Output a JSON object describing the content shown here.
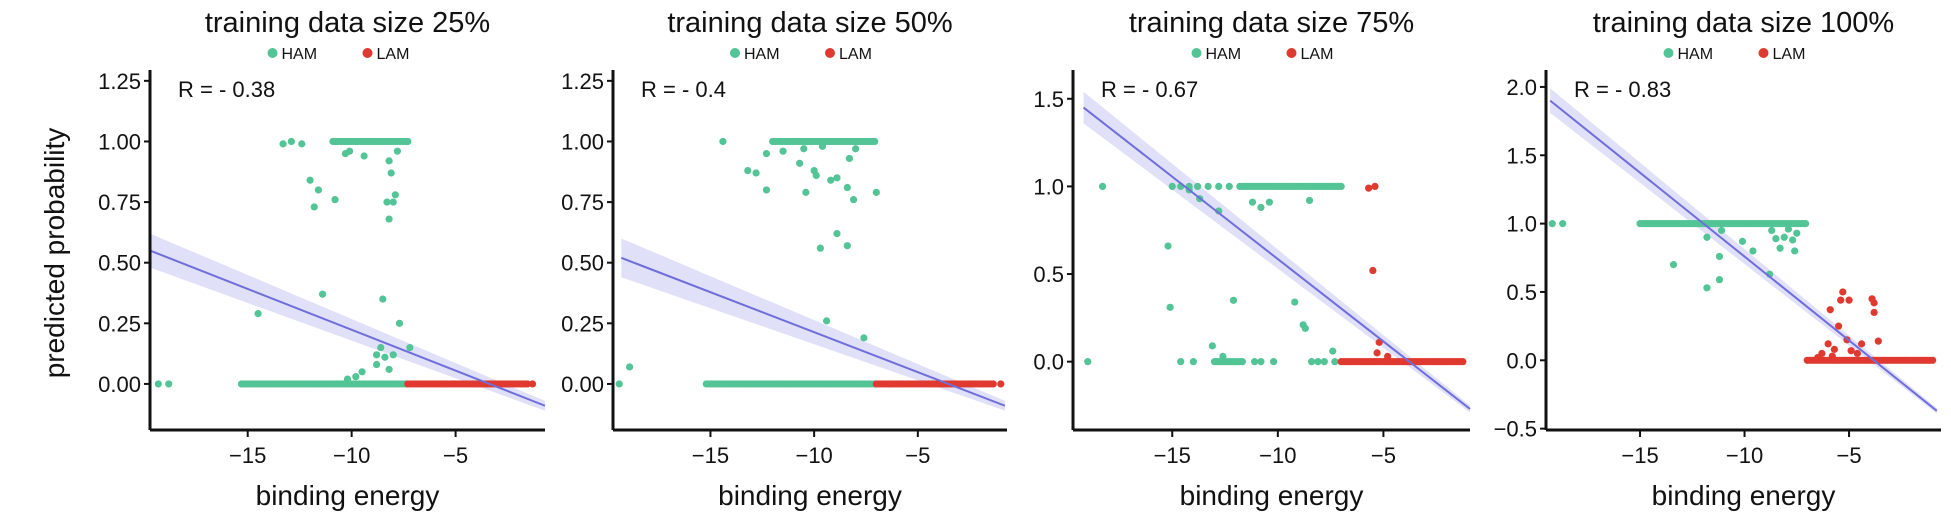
{
  "colors": {
    "HAM": "#52c495",
    "LAM": "#e0392f",
    "fit_line": "#6f6ddc",
    "fit_band": "#d8d8f6",
    "axis": "#111111"
  },
  "chart_data": [
    {
      "type": "scatter",
      "title": "training data size 25%",
      "xlabel": "binding energy",
      "ylabel": "predicted probability",
      "legend": {
        "placement": "top",
        "entries": [
          "HAM",
          "LAM"
        ]
      },
      "annotation": "R = - 0.38",
      "xlim": [
        -19.7,
        -0.7
      ],
      "ylim": [
        -0.19,
        1.27
      ],
      "xticks": [
        -15,
        -10,
        -5
      ],
      "xtick_labels": [
        "−15",
        "−10",
        "−5"
      ],
      "yticks": [
        0,
        0.25,
        0.5,
        0.75,
        1.0,
        1.25
      ],
      "ytick_labels": [
        "0.00",
        "0.25",
        "0.50",
        "0.75",
        "1.00",
        "1.25"
      ],
      "grid": false,
      "series": [
        {
          "name": "HAM",
          "bands": [
            {
              "y": 0,
              "x": [
                -15.3,
                -7.3
              ]
            },
            {
              "y": 1,
              "x": [
                -10.9,
                -7.3
              ]
            }
          ],
          "points": [
            [
              -19.3,
              0
            ],
            [
              -18.8,
              0
            ],
            [
              -13.3,
              0.99
            ],
            [
              -12.9,
              1.0
            ],
            [
              -12.4,
              0.99
            ],
            [
              -12.0,
              0.84
            ],
            [
              -11.6,
              0.8
            ],
            [
              -11.8,
              0.73
            ],
            [
              -10.8,
              0.76
            ],
            [
              -8.3,
              0.75
            ],
            [
              -8.0,
              0.75
            ],
            [
              -8.2,
              0.68
            ],
            [
              -7.9,
              0.78
            ],
            [
              -8.1,
              0.87
            ],
            [
              -8.2,
              0.92
            ],
            [
              -10.3,
              0.95
            ],
            [
              -9.4,
              0.94
            ],
            [
              -10.1,
              0.96
            ],
            [
              -7.8,
              0.96
            ],
            [
              -11.4,
              0.37
            ],
            [
              -8.5,
              0.35
            ],
            [
              -14.5,
              0.29
            ],
            [
              -7.7,
              0.25
            ],
            [
              -7.2,
              0.15
            ],
            [
              -8.8,
              0.12
            ],
            [
              -8.6,
              0.15
            ],
            [
              -8.8,
              0.08
            ],
            [
              -8.4,
              0.11
            ],
            [
              -8.0,
              0.12
            ],
            [
              -8.2,
              0.06
            ],
            [
              -9.5,
              0.05
            ],
            [
              -9.8,
              0.03
            ],
            [
              -10.2,
              0.02
            ]
          ]
        },
        {
          "name": "LAM",
          "bands": [
            {
              "y": 0,
              "x": [
                -7.3,
                -1.5
              ]
            }
          ],
          "points": [
            [
              -1.3,
              0
            ]
          ]
        }
      ],
      "fit": {
        "x": [
          -19.7,
          -0.7
        ],
        "y": [
          0.55,
          -0.09
        ],
        "band_halfwidth": [
          0.07,
          0.02
        ]
      }
    },
    {
      "type": "scatter",
      "title": "training data size 50%",
      "xlabel": "binding energy",
      "ylabel": "",
      "legend": {
        "placement": "top",
        "entries": [
          "HAM",
          "LAM"
        ]
      },
      "annotation": "R = - 0.4",
      "xlim": [
        -19.7,
        -0.7
      ],
      "ylim": [
        -0.19,
        1.27
      ],
      "xticks": [
        -15,
        -10,
        -5
      ],
      "xtick_labels": [
        "−15",
        "−10",
        "−5"
      ],
      "yticks": [
        0,
        0.25,
        0.5,
        0.75,
        1.0,
        1.25
      ],
      "ytick_labels": [
        "0.00",
        "0.25",
        "0.50",
        "0.75",
        "1.00",
        "1.25"
      ],
      "grid": false,
      "series": [
        {
          "name": "HAM",
          "bands": [
            {
              "y": 0,
              "x": [
                -15.2,
                -7.0
              ]
            },
            {
              "y": 1,
              "x": [
                -12.0,
                -7.0
              ]
            }
          ],
          "points": [
            [
              -19.4,
              0
            ],
            [
              -18.9,
              0.07
            ],
            [
              -14.4,
              1.0
            ],
            [
              -12.3,
              0.95
            ],
            [
              -11.5,
              0.96
            ],
            [
              -13.2,
              0.88
            ],
            [
              -12.8,
              0.87
            ],
            [
              -12.3,
              0.8
            ],
            [
              -10.7,
              0.91
            ],
            [
              -10.0,
              0.88
            ],
            [
              -9.9,
              0.86
            ],
            [
              -10.4,
              0.79
            ],
            [
              -9.2,
              0.84
            ],
            [
              -8.9,
              0.85
            ],
            [
              -8.4,
              0.81
            ],
            [
              -8.3,
              0.93
            ],
            [
              -8.1,
              0.76
            ],
            [
              -7.0,
              0.79
            ],
            [
              -8.9,
              0.62
            ],
            [
              -9.7,
              0.56
            ],
            [
              -8.4,
              0.57
            ],
            [
              -9.4,
              0.26
            ],
            [
              -7.6,
              0.19
            ],
            [
              -10.5,
              0.97
            ],
            [
              -9.6,
              0.98
            ],
            [
              -8.0,
              0.97
            ]
          ]
        },
        {
          "name": "LAM",
          "bands": [
            {
              "y": 0,
              "x": [
                -7.0,
                -1.3
              ]
            }
          ],
          "points": [
            [
              -1.0,
              0
            ]
          ]
        }
      ],
      "fit": {
        "x": [
          -19.3,
          -0.8
        ],
        "y": [
          0.52,
          -0.09
        ],
        "band_halfwidth": [
          0.08,
          0.02
        ]
      }
    },
    {
      "type": "scatter",
      "title": "training data size 75%",
      "xlabel": "binding energy",
      "ylabel": "",
      "legend": {
        "placement": "top",
        "entries": [
          "HAM",
          "LAM"
        ]
      },
      "annotation": "R = - 0.67",
      "xlim": [
        -19.7,
        -0.9
      ],
      "ylim": [
        -0.39,
        1.63
      ],
      "xticks": [
        -15,
        -10,
        -5
      ],
      "xtick_labels": [
        "−15",
        "−10",
        "−5"
      ],
      "yticks": [
        0,
        0.5,
        1.0,
        1.5
      ],
      "ytick_labels": [
        "0.0",
        "0.5",
        "1.0",
        "1.5"
      ],
      "grid": false,
      "series": [
        {
          "name": "HAM",
          "bands": [
            {
              "y": 1,
              "x": [
                -11.8,
                -7.0
              ]
            },
            {
              "y": 0,
              "x": [
                -13.0,
                -11.6
              ]
            }
          ],
          "points": [
            [
              -18.3,
              1.0
            ],
            [
              -15.0,
              1.0
            ],
            [
              -14.6,
              1.0
            ],
            [
              -14.2,
              1.0
            ],
            [
              -13.8,
              1.0
            ],
            [
              -13.3,
              1.0
            ],
            [
              -12.8,
              1.0
            ],
            [
              -12.3,
              1.0
            ],
            [
              -14.2,
              0.98
            ],
            [
              -13.7,
              0.93
            ],
            [
              -12.8,
              0.86
            ],
            [
              -11.2,
              0.91
            ],
            [
              -10.8,
              0.88
            ],
            [
              -10.4,
              0.91
            ],
            [
              -8.5,
              0.92
            ],
            [
              -15.2,
              0.66
            ],
            [
              -15.1,
              0.31
            ],
            [
              -12.1,
              0.35
            ],
            [
              -9.2,
              0.34
            ],
            [
              -8.8,
              0.21
            ],
            [
              -8.7,
              0.19
            ],
            [
              -13.1,
              0.09
            ],
            [
              -7.4,
              0.06
            ],
            [
              -19.0,
              0
            ],
            [
              -14.6,
              0
            ],
            [
              -14.0,
              0
            ],
            [
              -11.1,
              0
            ],
            [
              -10.8,
              0
            ],
            [
              -10.2,
              0
            ],
            [
              -8.4,
              0
            ],
            [
              -8.1,
              0
            ],
            [
              -7.8,
              0
            ],
            [
              -7.3,
              0
            ],
            [
              -12.6,
              0.03
            ]
          ]
        },
        {
          "name": "LAM",
          "bands": [
            {
              "y": 0,
              "x": [
                -7.0,
                -1.2
              ]
            }
          ],
          "points": [
            [
              -5.7,
              0.99
            ],
            [
              -5.4,
              1.0
            ],
            [
              -5.5,
              0.52
            ],
            [
              -5.2,
              0.11
            ],
            [
              -5.3,
              0.05
            ],
            [
              -4.8,
              0.03
            ]
          ]
        }
      ],
      "fit": {
        "x": [
          -19.2,
          -0.9
        ],
        "y": [
          1.45,
          -0.27
        ],
        "band_halfwidth": [
          0.09,
          0.02
        ]
      }
    },
    {
      "type": "scatter",
      "title": "training data size 100%",
      "xlabel": "binding energy",
      "ylabel": "",
      "legend": {
        "placement": "top",
        "entries": [
          "HAM",
          "LAM"
        ]
      },
      "annotation": "R = - 0.83",
      "xlim": [
        -19.5,
        -0.6
      ],
      "ylim": [
        -0.51,
        2.08
      ],
      "xticks": [
        -15,
        -10,
        -5
      ],
      "xtick_labels": [
        "−15",
        "−10",
        "−5"
      ],
      "yticks": [
        -0.5,
        0,
        0.5,
        1.0,
        1.5,
        2.0
      ],
      "ytick_labels": [
        "−0.5",
        "0.0",
        "0.5",
        "1.0",
        "1.5",
        "2.0"
      ],
      "grid": false,
      "series": [
        {
          "name": "HAM",
          "bands": [
            {
              "y": 1,
              "x": [
                -15.0,
                -7.0
              ]
            }
          ],
          "points": [
            [
              -19.2,
              1.0
            ],
            [
              -18.7,
              1.0
            ],
            [
              -11.8,
              0.9
            ],
            [
              -11.1,
              0.95
            ],
            [
              -10.1,
              0.87
            ],
            [
              -8.5,
              0.89
            ],
            [
              -8.1,
              0.9
            ],
            [
              -7.5,
              0.93
            ],
            [
              -7.7,
              0.88
            ],
            [
              -8.3,
              0.82
            ],
            [
              -7.6,
              0.8
            ],
            [
              -9.6,
              0.8
            ],
            [
              -11.2,
              0.76
            ],
            [
              -13.4,
              0.7
            ],
            [
              -8.8,
              0.63
            ],
            [
              -11.2,
              0.59
            ],
            [
              -11.8,
              0.53
            ],
            [
              -7.9,
              0.96
            ],
            [
              -8.7,
              0.95
            ]
          ]
        },
        {
          "name": "LAM",
          "bands": [
            {
              "y": 0,
              "x": [
                -7.0,
                -1.0
              ]
            }
          ],
          "points": [
            [
              -5.3,
              0.5
            ],
            [
              -5.4,
              0.44
            ],
            [
              -5.0,
              0.44
            ],
            [
              -3.9,
              0.45
            ],
            [
              -3.8,
              0.42
            ],
            [
              -3.8,
              0.35
            ],
            [
              -5.9,
              0.37
            ],
            [
              -5.5,
              0.25
            ],
            [
              -5.1,
              0.15
            ],
            [
              -3.6,
              0.14
            ],
            [
              -4.4,
              0.12
            ],
            [
              -6.0,
              0.12
            ],
            [
              -5.7,
              0.08
            ],
            [
              -6.3,
              0.05
            ],
            [
              -4.6,
              0.05
            ],
            [
              -5.8,
              0.03
            ],
            [
              -4.9,
              0.07
            ],
            [
              -6.5,
              0.02
            ]
          ]
        }
      ],
      "fit": {
        "x": [
          -19.3,
          -0.8
        ],
        "y": [
          1.9,
          -0.37
        ],
        "band_halfwidth": [
          0.09,
          0.02
        ]
      }
    }
  ]
}
